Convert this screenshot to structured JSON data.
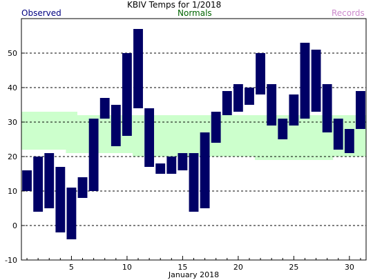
{
  "chart_data": {
    "type": "bar",
    "title": "KBIV Temps for 1/2018",
    "legend": {
      "observed": "Observed",
      "normals": "Normals",
      "records": "Records"
    },
    "xlabel": "January 2018",
    "x_ticks": [
      5,
      10,
      15,
      20,
      25,
      30
    ],
    "y_ticks": [
      -10,
      0,
      10,
      20,
      30,
      40,
      50
    ],
    "xlim": [
      0.5,
      31.5
    ],
    "ylim": [
      -10,
      60
    ],
    "grid": "horizontal dashed",
    "colors": {
      "observed": "#000066",
      "normals_fill": "#ccffcc",
      "observed_text": "#000080",
      "normals_text": "#006400",
      "records_text": "#cc88cc"
    },
    "series": [
      {
        "name": "Observed",
        "days": [
          1,
          2,
          3,
          4,
          5,
          6,
          7,
          8,
          9,
          10,
          11,
          12,
          13,
          14,
          15,
          16,
          17,
          18,
          19,
          20,
          21,
          22,
          23,
          24,
          25,
          26,
          27,
          28,
          29,
          30,
          31
        ],
        "high": [
          16,
          20,
          21,
          17,
          11,
          14,
          31,
          37,
          35,
          50,
          57,
          34,
          18,
          20,
          21,
          21,
          27,
          33,
          39,
          41,
          40,
          50,
          41,
          31,
          38,
          53,
          51,
          41,
          31,
          28,
          39
        ],
        "low": [
          10,
          4,
          5,
          -2,
          -4,
          8,
          10,
          31,
          23,
          26,
          34,
          17,
          15,
          15,
          16,
          4,
          5,
          24,
          32,
          33,
          35,
          38,
          29,
          25,
          29,
          31,
          33,
          27,
          22,
          21,
          28
        ]
      },
      {
        "name": "Normals",
        "days": [
          1,
          2,
          3,
          4,
          5,
          6,
          7,
          8,
          9,
          10,
          11,
          12,
          13,
          14,
          15,
          16,
          17,
          18,
          19,
          20,
          21,
          22,
          23,
          24,
          25,
          26,
          27,
          28,
          29,
          30,
          31
        ],
        "high": [
          33,
          33,
          33,
          33,
          33,
          32,
          32,
          32,
          32,
          32,
          32,
          32,
          32,
          32,
          32,
          32,
          32,
          32,
          32,
          32,
          32,
          32,
          32,
          32,
          32,
          32,
          32,
          32,
          32,
          32,
          32
        ],
        "low": [
          22,
          22,
          22,
          22,
          21,
          21,
          21,
          21,
          21,
          21,
          20,
          20,
          20,
          20,
          20,
          20,
          20,
          20,
          20,
          20,
          20,
          19,
          19,
          19,
          19,
          19,
          19,
          19,
          20,
          20,
          20
        ]
      }
    ]
  }
}
